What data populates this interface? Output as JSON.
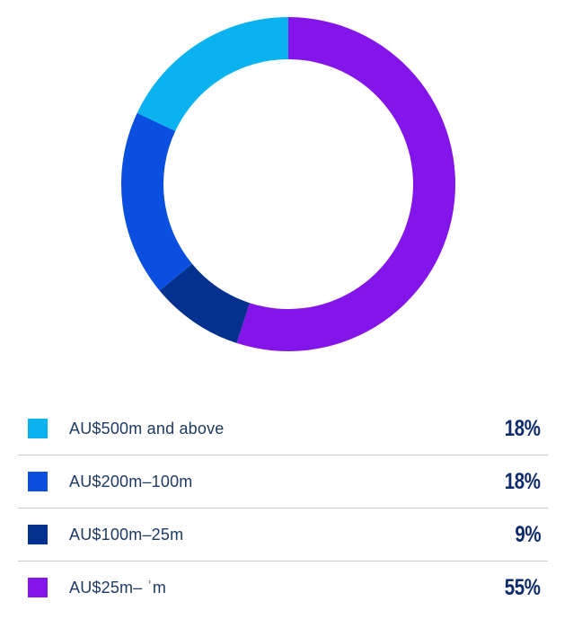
{
  "chart_data": {
    "type": "pie",
    "donut": true,
    "start_angle_deg": 0,
    "direction": "clockwise",
    "order": [
      3,
      2,
      1,
      0
    ],
    "categories": [
      "AU$500m and above",
      "AU$200m–100m",
      "AU$100m–25m",
      "AU$25m– ʾm"
    ],
    "values": [
      18,
      18,
      9,
      55
    ],
    "value_labels": [
      "18%",
      "18%",
      "9%",
      "55%"
    ],
    "colors": [
      "#0bb2f0",
      "#0a4fe0",
      "#04308f",
      "#8314ea"
    ],
    "legend_position": "bottom"
  }
}
